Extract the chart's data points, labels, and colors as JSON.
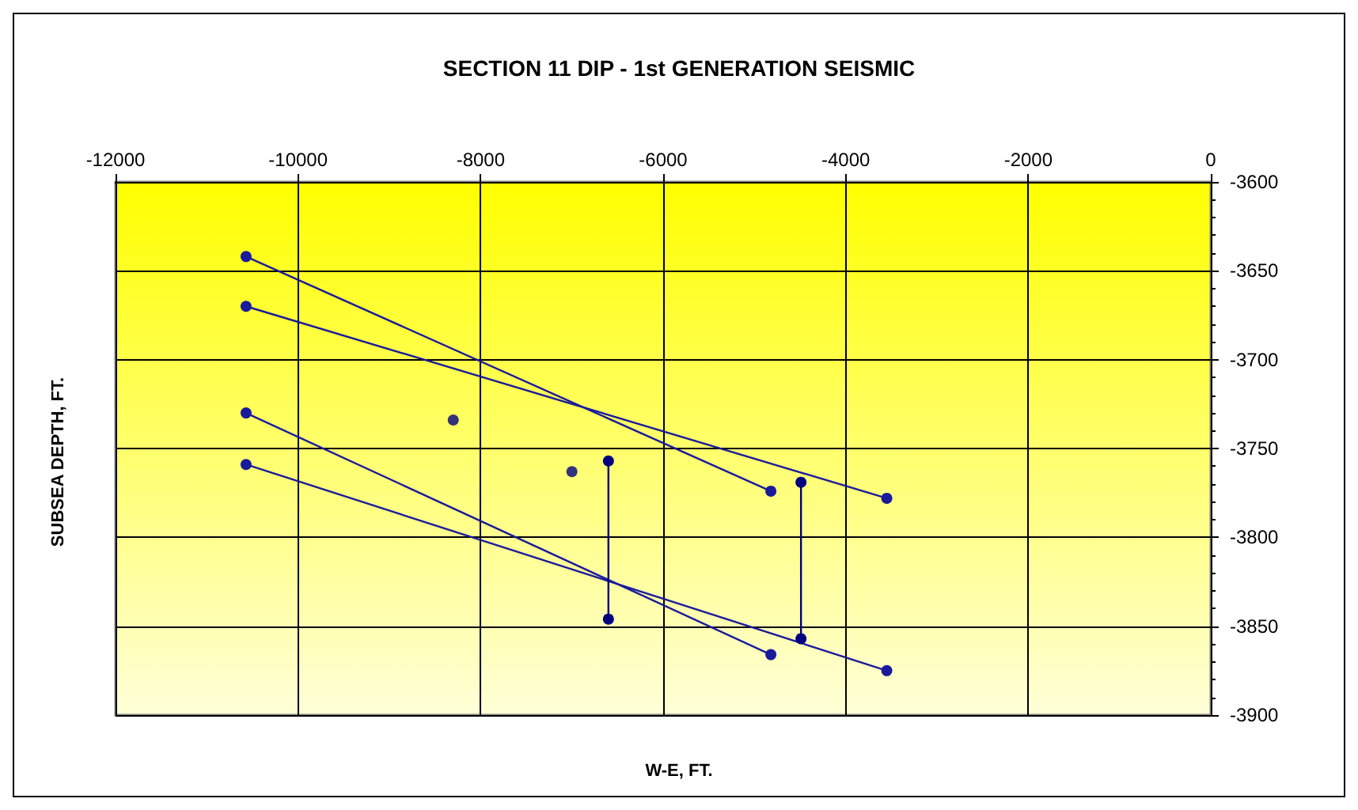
{
  "chart_data": {
    "type": "line",
    "title": "SECTION 11 DIP - 1st GENERATION SEISMIC",
    "xlabel": "W-E, FT.",
    "ylabel": "SUBSEA DEPTH, FT.",
    "series": [
      {
        "x": [
          -10570,
          -4820
        ],
        "values": [
          -3642,
          -3774
        ],
        "color": "#1a1a9c"
      },
      {
        "x": [
          -10570,
          -3550
        ],
        "values": [
          -3670,
          -3778
        ],
        "color": "#1a1a9c"
      },
      {
        "x": [
          -10570,
          -4820
        ],
        "values": [
          -3730,
          -3866
        ],
        "color": "#1a1a9c"
      },
      {
        "x": [
          -10570,
          -3550
        ],
        "values": [
          -3759,
          -3875
        ],
        "color": "#1a1a9c"
      },
      {
        "x": [
          -6600,
          -6600
        ],
        "values": [
          -3757,
          -3846
        ],
        "color": "#000080"
      },
      {
        "x": [
          -4490,
          -4490
        ],
        "values": [
          -3769,
          -3857
        ],
        "color": "#000080"
      },
      {
        "type": "scatter",
        "x": [
          -8300,
          -7000
        ],
        "values": [
          -3734,
          -3763
        ],
        "color": "#000080"
      }
    ],
    "xlim": [
      -12000,
      0
    ],
    "xticks": [
      -12000,
      -10000,
      -8000,
      -6000,
      -4000,
      -2000,
      0
    ],
    "ylim": [
      -3900,
      -3600
    ],
    "yticks": [
      -3900,
      -3850,
      -3800,
      -3750,
      -3700,
      -3650,
      -3600
    ],
    "grid": true,
    "marker": "circle",
    "line_style": "solid"
  }
}
